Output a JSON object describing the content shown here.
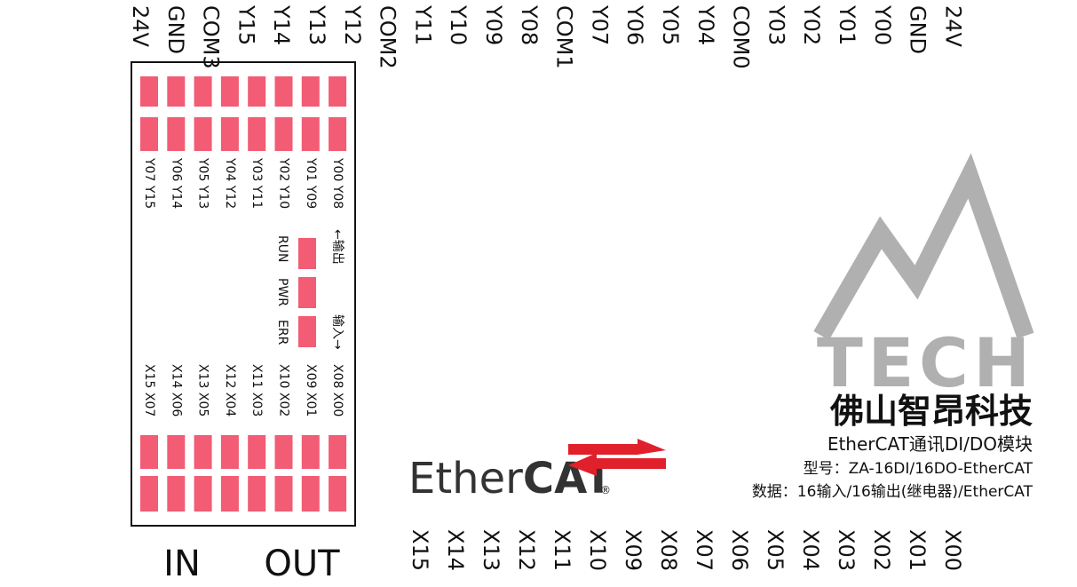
{
  "top_terminals": [
    "24V",
    "GND",
    "COM3",
    "Y15",
    "Y14",
    "Y13",
    "Y12",
    "COM2",
    "Y11",
    "Y10",
    "Y09",
    "Y08",
    "COM1",
    "Y07",
    "Y06",
    "Y05",
    "Y04",
    "COM0",
    "Y03",
    "Y02",
    "Y01",
    "Y00",
    "GND",
    "24V"
  ],
  "bottom_terminals": [
    "X15",
    "X14",
    "X13",
    "X12",
    "X11",
    "X10",
    "X09",
    "X08",
    "X07",
    "X06",
    "X05",
    "X04",
    "X03",
    "X02",
    "X01",
    "X00"
  ],
  "module": {
    "output_columns": [
      "Y07 Y15",
      "Y06 Y14",
      "Y05 Y13",
      "Y04 Y12",
      "Y03 Y11",
      "Y02 Y10",
      "Y01 Y09",
      "Y00 Y08"
    ],
    "output_label": "←输出",
    "input_columns": [
      "X15 X07",
      "X14 X06",
      "X13 X05",
      "X12 X04",
      "X11 X03",
      "X10 X02",
      "X09 X01",
      "X08 X00"
    ],
    "input_label": "输入→",
    "status": [
      "RUN",
      "PWR",
      "ERR"
    ],
    "in_label": "IN",
    "out_label": "OUT"
  },
  "ethercat_logo": {
    "ether": "Ether",
    "cat": "CAT",
    "reg": "®"
  },
  "brand": {
    "logo_text": "TECH",
    "company": "佛山智昂科技",
    "product": "EtherCAT通讯DI/DO模块",
    "model": "型号：ZA-16DI/16DO-EtherCAT",
    "spec": "数据：16输入/16输出(继电器)/EtherCAT"
  }
}
